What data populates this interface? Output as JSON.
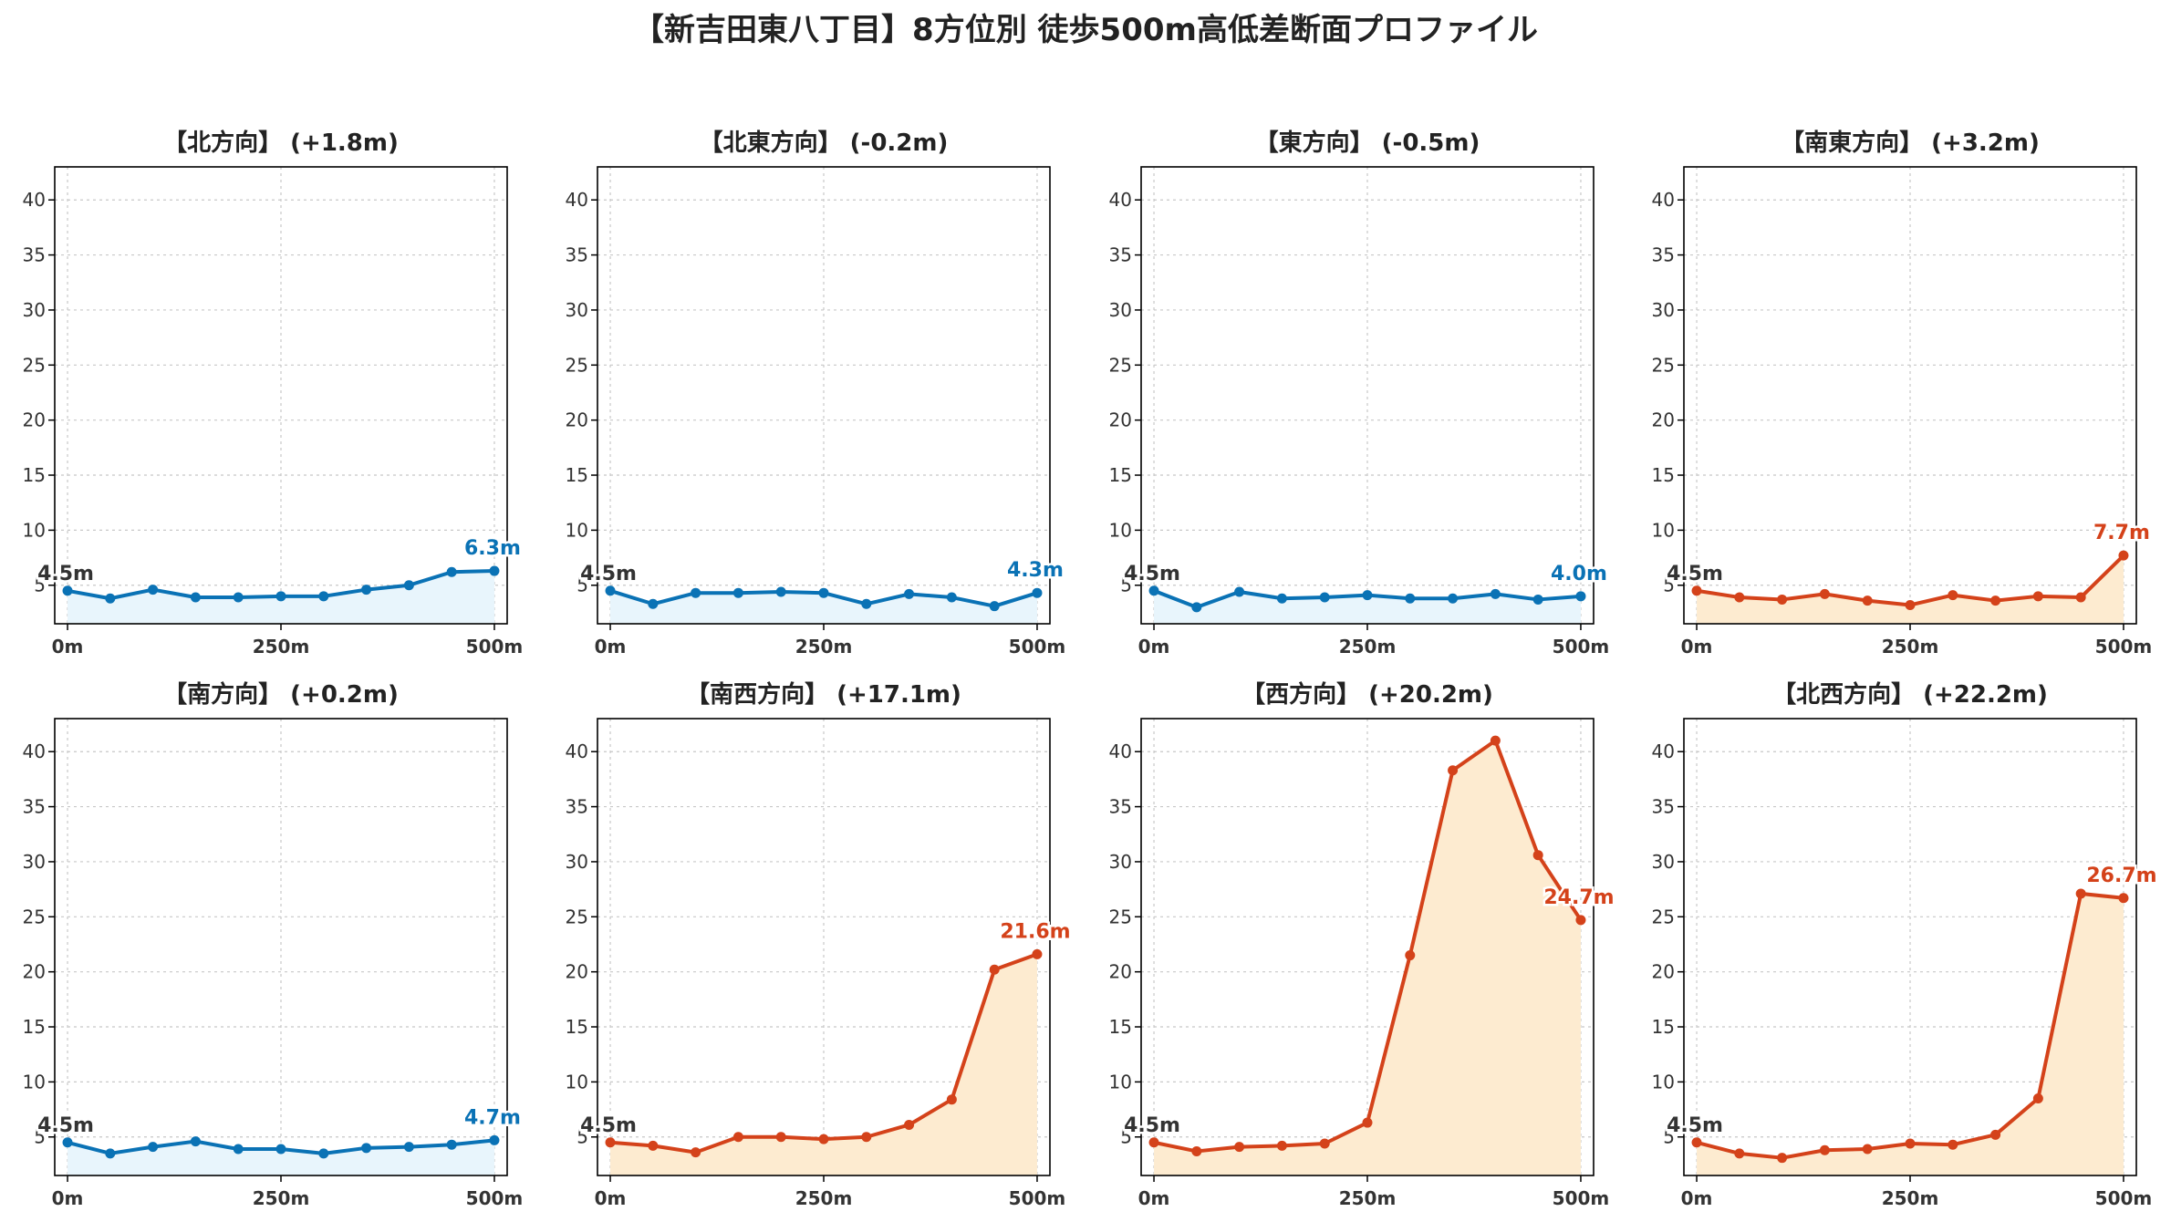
{
  "title": "【新吉田東八丁目】8方位別 徒歩500m高低差断面プロファイル",
  "colors": {
    "down_line": "#0a72b5",
    "down_fill": "#e8f5fc",
    "up_line": "#d4421a",
    "up_fill": "#fdebd0",
    "grid": "#c8c8c8",
    "start_label": "#333333"
  },
  "chart_data": [
    {
      "type": "area",
      "title": "【北方向】 (+1.8m)",
      "trend": "down",
      "x": [
        0,
        50,
        100,
        150,
        200,
        250,
        300,
        350,
        400,
        450,
        500
      ],
      "values": [
        4.5,
        3.8,
        4.6,
        3.9,
        3.9,
        4.0,
        4.0,
        4.6,
        5.0,
        6.2,
        6.3
      ],
      "start_label": "4.5m",
      "end_label": "6.3m",
      "x_tick_labels": [
        "0m",
        "250m",
        "500m"
      ],
      "y_ticks": [
        5,
        10,
        15,
        20,
        25,
        30,
        35,
        40
      ],
      "ylim": [
        1.5,
        43
      ],
      "xlim": [
        -15,
        515
      ],
      "grid": true
    },
    {
      "type": "area",
      "title": "【北東方向】 (-0.2m)",
      "trend": "down",
      "x": [
        0,
        50,
        100,
        150,
        200,
        250,
        300,
        350,
        400,
        450,
        500
      ],
      "values": [
        4.5,
        3.3,
        4.3,
        4.3,
        4.4,
        4.3,
        3.3,
        4.2,
        3.9,
        3.1,
        4.3
      ],
      "start_label": "4.5m",
      "end_label": "4.3m",
      "x_tick_labels": [
        "0m",
        "250m",
        "500m"
      ],
      "y_ticks": [
        5,
        10,
        15,
        20,
        25,
        30,
        35,
        40
      ],
      "ylim": [
        1.5,
        43
      ],
      "xlim": [
        -15,
        515
      ],
      "grid": true
    },
    {
      "type": "area",
      "title": "【東方向】 (-0.5m)",
      "trend": "down",
      "x": [
        0,
        50,
        100,
        150,
        200,
        250,
        300,
        350,
        400,
        450,
        500
      ],
      "values": [
        4.5,
        3.0,
        4.4,
        3.8,
        3.9,
        4.1,
        3.8,
        3.8,
        4.2,
        3.7,
        4.0
      ],
      "start_label": "4.5m",
      "end_label": "4.0m",
      "x_tick_labels": [
        "0m",
        "250m",
        "500m"
      ],
      "y_ticks": [
        5,
        10,
        15,
        20,
        25,
        30,
        35,
        40
      ],
      "ylim": [
        1.5,
        43
      ],
      "xlim": [
        -15,
        515
      ],
      "grid": true
    },
    {
      "type": "area",
      "title": "【南東方向】 (+3.2m)",
      "trend": "up",
      "x": [
        0,
        50,
        100,
        150,
        200,
        250,
        300,
        350,
        400,
        450,
        500
      ],
      "values": [
        4.5,
        3.9,
        3.7,
        4.2,
        3.6,
        3.2,
        4.1,
        3.6,
        4.0,
        3.9,
        7.7
      ],
      "start_label": "4.5m",
      "end_label": "7.7m",
      "x_tick_labels": [
        "0m",
        "250m",
        "500m"
      ],
      "y_ticks": [
        5,
        10,
        15,
        20,
        25,
        30,
        35,
        40
      ],
      "ylim": [
        1.5,
        43
      ],
      "xlim": [
        -15,
        515
      ],
      "grid": true
    },
    {
      "type": "area",
      "title": "【南方向】 (+0.2m)",
      "trend": "down",
      "x": [
        0,
        50,
        100,
        150,
        200,
        250,
        300,
        350,
        400,
        450,
        500
      ],
      "values": [
        4.5,
        3.5,
        4.1,
        4.6,
        3.9,
        3.9,
        3.5,
        4.0,
        4.1,
        4.3,
        4.7
      ],
      "start_label": "4.5m",
      "end_label": "4.7m",
      "x_tick_labels": [
        "0m",
        "250m",
        "500m"
      ],
      "y_ticks": [
        5,
        10,
        15,
        20,
        25,
        30,
        35,
        40
      ],
      "ylim": [
        1.5,
        43
      ],
      "xlim": [
        -15,
        515
      ],
      "grid": true
    },
    {
      "type": "area",
      "title": "【南西方向】 (+17.1m)",
      "trend": "up",
      "x": [
        0,
        50,
        100,
        150,
        200,
        250,
        300,
        350,
        400,
        450,
        500
      ],
      "values": [
        4.5,
        4.2,
        3.6,
        5.0,
        5.0,
        4.8,
        5.0,
        6.1,
        8.4,
        20.2,
        21.6
      ],
      "start_label": "4.5m",
      "end_label": "21.6m",
      "x_tick_labels": [
        "0m",
        "250m",
        "500m"
      ],
      "y_ticks": [
        5,
        10,
        15,
        20,
        25,
        30,
        35,
        40
      ],
      "ylim": [
        1.5,
        43
      ],
      "xlim": [
        -15,
        515
      ],
      "grid": true
    },
    {
      "type": "area",
      "title": "【西方向】 (+20.2m)",
      "trend": "up",
      "x": [
        0,
        50,
        100,
        150,
        200,
        250,
        300,
        350,
        400,
        450,
        500
      ],
      "values": [
        4.5,
        3.7,
        4.1,
        4.2,
        4.4,
        6.3,
        21.5,
        38.3,
        41.0,
        30.6,
        24.7
      ],
      "start_label": "4.5m",
      "end_label": "24.7m",
      "x_tick_labels": [
        "0m",
        "250m",
        "500m"
      ],
      "y_ticks": [
        5,
        10,
        15,
        20,
        25,
        30,
        35,
        40
      ],
      "ylim": [
        1.5,
        43
      ],
      "xlim": [
        -15,
        515
      ],
      "grid": true
    },
    {
      "type": "area",
      "title": "【北西方向】 (+22.2m)",
      "trend": "up",
      "x": [
        0,
        50,
        100,
        150,
        200,
        250,
        300,
        350,
        400,
        450,
        500
      ],
      "values": [
        4.5,
        3.5,
        3.1,
        3.8,
        3.9,
        4.4,
        4.3,
        5.2,
        8.5,
        27.1,
        26.7
      ],
      "start_label": "4.5m",
      "end_label": "26.7m",
      "x_tick_labels": [
        "0m",
        "250m",
        "500m"
      ],
      "y_ticks": [
        5,
        10,
        15,
        20,
        25,
        30,
        35,
        40
      ],
      "ylim": [
        1.5,
        43
      ],
      "xlim": [
        -15,
        515
      ],
      "grid": true
    }
  ]
}
